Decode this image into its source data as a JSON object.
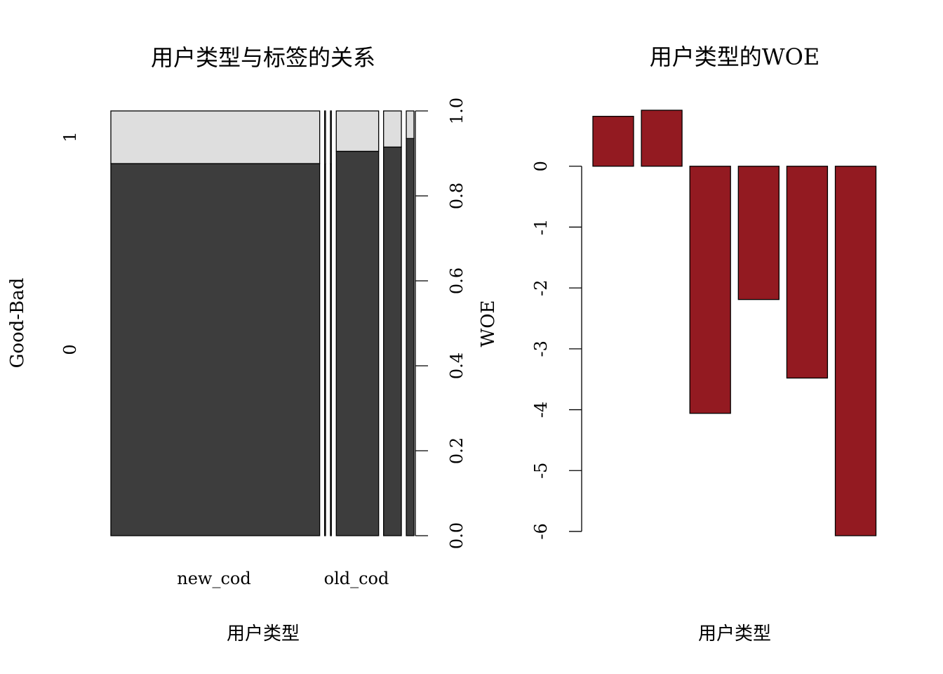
{
  "chart_data": [
    {
      "type": "spineplot",
      "title": "用户类型与标签的关系",
      "xlabel": "用户类型",
      "ylabel": "Good-Bad",
      "category_labels": [
        "new_cod",
        "old_cod"
      ],
      "levels": [
        "0",
        "1"
      ],
      "right_axis": {
        "ticks": [
          "0.0",
          "0.2",
          "0.4",
          "0.6",
          "0.8",
          "1.0"
        ]
      },
      "bins": [
        {
          "width": 0.68,
          "p0": 0.876
        },
        {
          "width": 0.003,
          "p0": 0.876
        },
        {
          "width": 0.003,
          "p0": 0.876
        },
        {
          "width": 0.138,
          "p0": 0.905
        },
        {
          "width": 0.058,
          "p0": 0.915
        },
        {
          "width": 0.025,
          "p0": 0.935
        }
      ],
      "colors": {
        "level0": "#3d3d3d",
        "level1": "#dedede"
      }
    },
    {
      "type": "bar",
      "title": "用户类型的WOE",
      "xlabel": "用户类型",
      "ylabel": "WOE",
      "values": [
        0.82,
        0.92,
        -4.06,
        -2.19,
        -3.48,
        -6.07
      ],
      "yticks": [
        "0",
        "-1",
        "-2",
        "-3",
        "-4",
        "-5",
        "-6"
      ],
      "ylim": [
        -6.07,
        0.92
      ],
      "bar_color": "#931a21"
    }
  ]
}
